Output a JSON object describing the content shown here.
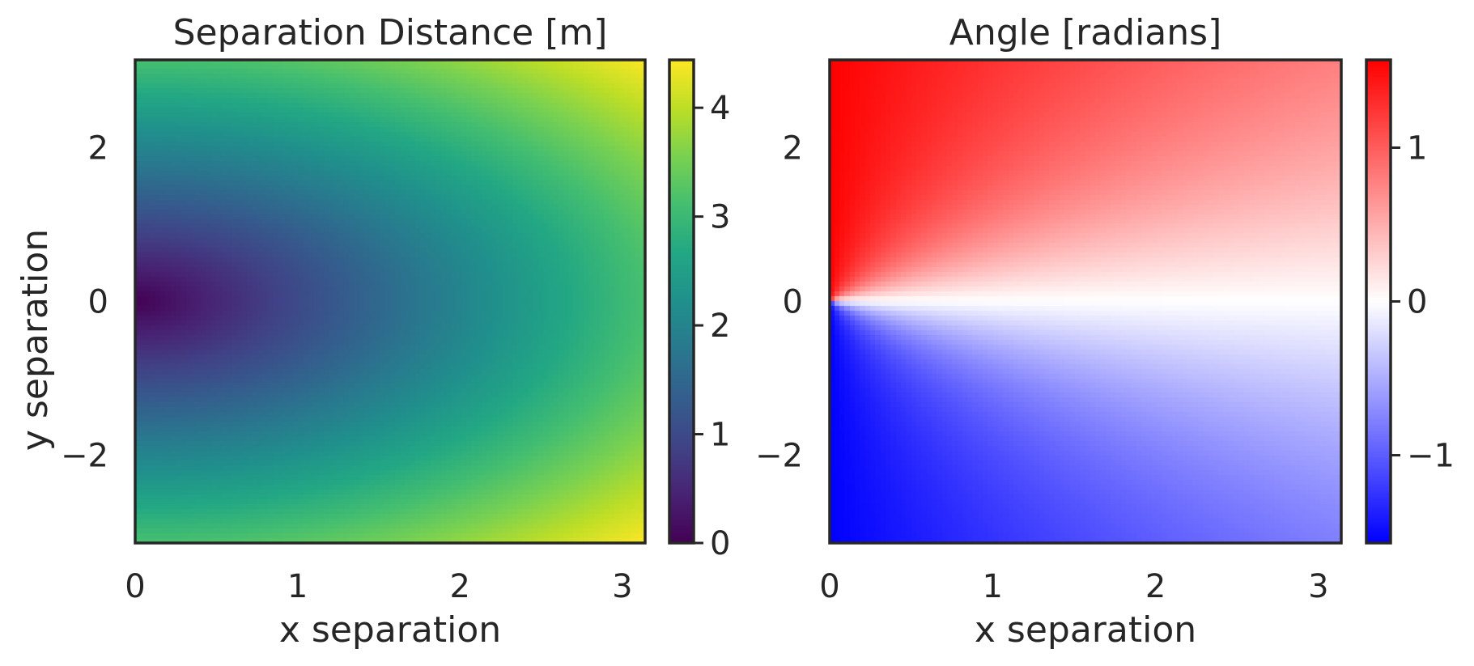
{
  "chart_data": [
    {
      "type": "heatmap",
      "title": "Separation Distance [m]",
      "xlabel": "x separation",
      "ylabel": "y separation",
      "xlim": [
        0,
        3.14
      ],
      "ylim": [
        -3.14,
        3.14
      ],
      "x_ticks": [
        0,
        1,
        2,
        3
      ],
      "y_ticks": [
        -2,
        0,
        2
      ],
      "x_tick_labels": [
        "0",
        "1",
        "2",
        "3"
      ],
      "y_tick_labels": [
        "−2",
        "0",
        "2"
      ],
      "value_function": "sqrt(x^2 + y^2)",
      "colormap": "viridis",
      "colorbar": {
        "min": 0,
        "max": 4.44,
        "ticks": [
          0,
          1,
          2,
          3,
          4
        ],
        "tick_labels": [
          "0",
          "1",
          "2",
          "3",
          "4"
        ]
      },
      "grid": false
    },
    {
      "type": "heatmap",
      "title": "Angle [radians]",
      "xlabel": "x separation",
      "ylabel": "",
      "xlim": [
        0,
        3.14
      ],
      "ylim": [
        -3.14,
        3.14
      ],
      "x_ticks": [
        0,
        1,
        2,
        3
      ],
      "y_ticks": [
        -2,
        0,
        2
      ],
      "x_tick_labels": [
        "0",
        "1",
        "2",
        "3"
      ],
      "y_tick_labels": [
        "−2",
        "0",
        "2"
      ],
      "value_function": "atan(y / x)",
      "colormap": "bwr",
      "colorbar": {
        "min": -1.5708,
        "max": 1.5708,
        "ticks": [
          -1,
          0,
          1
        ],
        "tick_labels": [
          "−1",
          "0",
          "1"
        ]
      },
      "grid": false
    }
  ]
}
